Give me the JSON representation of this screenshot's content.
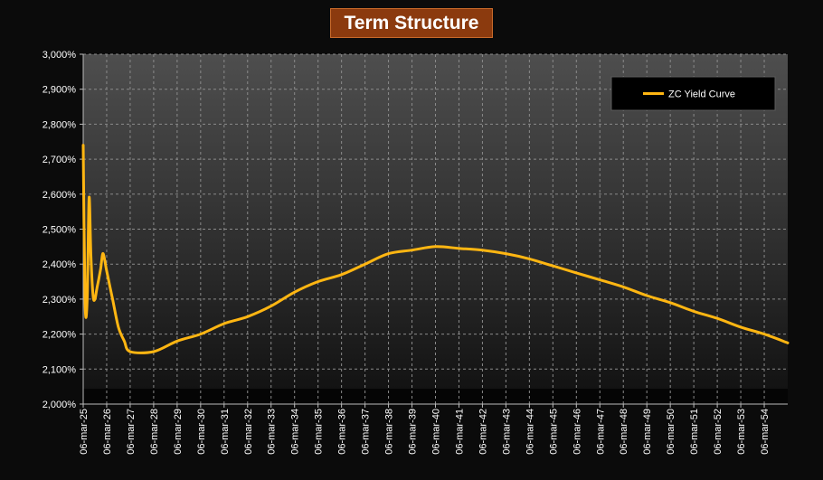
{
  "chart_data": {
    "type": "line",
    "title": "Term Structure",
    "xlabel": "",
    "ylabel": "",
    "ylim": [
      2.0,
      3.0
    ],
    "y_ticks": [
      2.0,
      2.1,
      2.2,
      2.3,
      2.4,
      2.5,
      2.6,
      2.7,
      2.8,
      2.9,
      3.0
    ],
    "y_tick_labels": [
      "2,000%",
      "2,100%",
      "2,200%",
      "2,300%",
      "2,400%",
      "2,500%",
      "2,600%",
      "2,700%",
      "2,800%",
      "2,900%",
      "3,000%"
    ],
    "x_tick_labels": [
      "06-mar-25",
      "06-mar-26",
      "06-mar-27",
      "06-mar-28",
      "06-mar-29",
      "06-mar-30",
      "06-mar-31",
      "06-mar-32",
      "06-mar-33",
      "06-mar-34",
      "06-mar-35",
      "06-mar-36",
      "06-mar-37",
      "06-mar-38",
      "06-mar-39",
      "06-mar-40",
      "06-mar-41",
      "06-mar-42",
      "06-mar-43",
      "06-mar-44",
      "06-mar-45",
      "06-mar-46",
      "06-mar-47",
      "06-mar-48",
      "06-mar-49",
      "06-mar-50",
      "06-mar-51",
      "06-mar-52",
      "06-mar-53",
      "06-mar-54"
    ],
    "grid": true,
    "legend_position": "top-right",
    "series": [
      {
        "name": "ZC Yield Curve",
        "color": "#ffb612",
        "x": [
          2025.0,
          2025.08,
          2025.17,
          2025.25,
          2025.33,
          2025.42,
          2025.5,
          2025.58,
          2025.67,
          2025.75,
          2025.83,
          2025.92,
          2026.0,
          2026.25,
          2026.5,
          2026.75,
          2027.0,
          2028.0,
          2029.0,
          2030.0,
          2031.0,
          2032.0,
          2033.0,
          2034.0,
          2035.0,
          2036.0,
          2037.0,
          2038.0,
          2039.0,
          2040.0,
          2041.0,
          2042.0,
          2043.0,
          2044.0,
          2045.0,
          2046.0,
          2047.0,
          2048.0,
          2049.0,
          2050.0,
          2051.0,
          2052.0,
          2053.0,
          2054.0,
          2055.0
        ],
        "values": [
          2.74,
          2.29,
          2.3,
          2.59,
          2.42,
          2.31,
          2.3,
          2.33,
          2.36,
          2.39,
          2.43,
          2.41,
          2.38,
          2.3,
          2.22,
          2.18,
          2.15,
          2.15,
          2.18,
          2.2,
          2.23,
          2.25,
          2.28,
          2.32,
          2.35,
          2.37,
          2.4,
          2.43,
          2.44,
          2.45,
          2.445,
          2.44,
          2.43,
          2.415,
          2.395,
          2.375,
          2.355,
          2.335,
          2.31,
          2.29,
          2.265,
          2.245,
          2.22,
          2.2,
          2.175
        ]
      }
    ]
  }
}
